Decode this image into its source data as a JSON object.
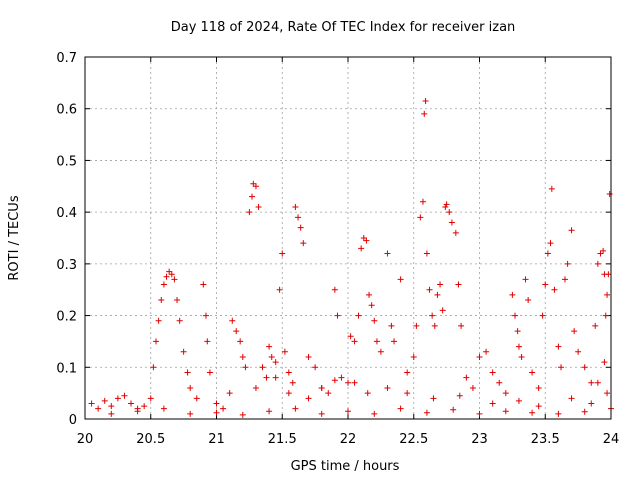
{
  "chart_data": {
    "type": "scatter",
    "title": "Day 118 of 2024, Rate Of TEC Index for receiver izan",
    "xlabel": "GPS time / hours",
    "ylabel": "ROTI / TECUs",
    "xlim": [
      20,
      24
    ],
    "ylim": [
      0,
      0.7
    ],
    "grid": true,
    "marker": "plus",
    "color": "#e00000",
    "x_ticks": [
      {
        "value": 20,
        "label": "20"
      },
      {
        "value": 20.5,
        "label": "20.5"
      },
      {
        "value": 21,
        "label": "21"
      },
      {
        "value": 21.5,
        "label": "21.5"
      },
      {
        "value": 22,
        "label": "22"
      },
      {
        "value": 22.5,
        "label": "22.5"
      },
      {
        "value": 23,
        "label": "23"
      },
      {
        "value": 23.5,
        "label": "23.5"
      },
      {
        "value": 24,
        "label": "24"
      }
    ],
    "y_ticks": [
      {
        "value": 0,
        "label": "0"
      },
      {
        "value": 0.1,
        "label": "0.1"
      },
      {
        "value": 0.2,
        "label": "0.2"
      },
      {
        "value": 0.3,
        "label": "0.3"
      },
      {
        "value": 0.4,
        "label": "0.4"
      },
      {
        "value": 0.5,
        "label": "0.5"
      },
      {
        "value": 0.6,
        "label": "0.6"
      },
      {
        "value": 0.7,
        "label": "0.7"
      }
    ],
    "points": [
      [
        20.05,
        0.03
      ],
      [
        20.1,
        0.02
      ],
      [
        20.15,
        0.035
      ],
      [
        20.2,
        0.025
      ],
      [
        20.25,
        0.04
      ],
      [
        20.3,
        0.045
      ],
      [
        20.35,
        0.03
      ],
      [
        20.4,
        0.02
      ],
      [
        20.45,
        0.025
      ],
      [
        20.5,
        0.04
      ],
      [
        20.52,
        0.1
      ],
      [
        20.54,
        0.15
      ],
      [
        20.56,
        0.19
      ],
      [
        20.58,
        0.23
      ],
      [
        20.6,
        0.26
      ],
      [
        20.62,
        0.275
      ],
      [
        20.64,
        0.285
      ],
      [
        20.66,
        0.28
      ],
      [
        20.68,
        0.27
      ],
      [
        20.7,
        0.23
      ],
      [
        20.72,
        0.19
      ],
      [
        20.75,
        0.13
      ],
      [
        20.78,
        0.09
      ],
      [
        20.8,
        0.06
      ],
      [
        20.85,
        0.04
      ],
      [
        20.9,
        0.26
      ],
      [
        20.92,
        0.2
      ],
      [
        20.93,
        0.15
      ],
      [
        20.95,
        0.09
      ],
      [
        21.0,
        0.03
      ],
      [
        21.05,
        0.02
      ],
      [
        21.1,
        0.05
      ],
      [
        21.12,
        0.19
      ],
      [
        21.15,
        0.17
      ],
      [
        21.18,
        0.15
      ],
      [
        21.2,
        0.12
      ],
      [
        21.22,
        0.1
      ],
      [
        21.25,
        0.4
      ],
      [
        21.27,
        0.43
      ],
      [
        21.28,
        0.455
      ],
      [
        21.3,
        0.45
      ],
      [
        21.32,
        0.41
      ],
      [
        21.35,
        0.1
      ],
      [
        21.38,
        0.08
      ],
      [
        21.4,
        0.14
      ],
      [
        21.42,
        0.12
      ],
      [
        21.45,
        0.11
      ],
      [
        21.48,
        0.25
      ],
      [
        21.5,
        0.32
      ],
      [
        21.52,
        0.13
      ],
      [
        21.55,
        0.09
      ],
      [
        21.58,
        0.07
      ],
      [
        21.6,
        0.41
      ],
      [
        21.62,
        0.39
      ],
      [
        21.64,
        0.37
      ],
      [
        21.66,
        0.34
      ],
      [
        21.7,
        0.12
      ],
      [
        21.75,
        0.1
      ],
      [
        21.8,
        0.06
      ],
      [
        21.85,
        0.05
      ],
      [
        21.9,
        0.25
      ],
      [
        21.92,
        0.2
      ],
      [
        21.95,
        0.08
      ],
      [
        22.0,
        0.07
      ],
      [
        22.02,
        0.16
      ],
      [
        22.05,
        0.15
      ],
      [
        22.08,
        0.2
      ],
      [
        22.1,
        0.33
      ],
      [
        22.12,
        0.35
      ],
      [
        22.14,
        0.345
      ],
      [
        22.16,
        0.24
      ],
      [
        22.18,
        0.22
      ],
      [
        22.2,
        0.19
      ],
      [
        22.22,
        0.15
      ],
      [
        22.25,
        0.13
      ],
      [
        22.3,
        0.32
      ],
      [
        22.33,
        0.18
      ],
      [
        22.35,
        0.15
      ],
      [
        22.4,
        0.27
      ],
      [
        22.45,
        0.09
      ],
      [
        22.5,
        0.12
      ],
      [
        22.52,
        0.18
      ],
      [
        22.55,
        0.39
      ],
      [
        22.57,
        0.42
      ],
      [
        22.58,
        0.59
      ],
      [
        22.59,
        0.615
      ],
      [
        22.6,
        0.32
      ],
      [
        22.62,
        0.25
      ],
      [
        22.64,
        0.2
      ],
      [
        22.66,
        0.18
      ],
      [
        22.68,
        0.24
      ],
      [
        22.7,
        0.26
      ],
      [
        22.72,
        0.21
      ],
      [
        22.74,
        0.41
      ],
      [
        22.75,
        0.415
      ],
      [
        22.77,
        0.4
      ],
      [
        22.79,
        0.38
      ],
      [
        22.82,
        0.36
      ],
      [
        22.84,
        0.26
      ],
      [
        22.86,
        0.18
      ],
      [
        22.9,
        0.08
      ],
      [
        22.95,
        0.06
      ],
      [
        23.0,
        0.12
      ],
      [
        23.05,
        0.13
      ],
      [
        23.1,
        0.09
      ],
      [
        23.15,
        0.07
      ],
      [
        23.2,
        0.05
      ],
      [
        23.25,
        0.24
      ],
      [
        23.27,
        0.2
      ],
      [
        23.29,
        0.17
      ],
      [
        23.3,
        0.14
      ],
      [
        23.32,
        0.12
      ],
      [
        23.35,
        0.27
      ],
      [
        23.37,
        0.23
      ],
      [
        23.4,
        0.09
      ],
      [
        23.45,
        0.06
      ],
      [
        23.48,
        0.2
      ],
      [
        23.5,
        0.26
      ],
      [
        23.52,
        0.32
      ],
      [
        23.54,
        0.34
      ],
      [
        23.55,
        0.445
      ],
      [
        23.57,
        0.25
      ],
      [
        23.6,
        0.14
      ],
      [
        23.62,
        0.1
      ],
      [
        23.65,
        0.27
      ],
      [
        23.67,
        0.3
      ],
      [
        23.7,
        0.365
      ],
      [
        23.72,
        0.17
      ],
      [
        23.75,
        0.13
      ],
      [
        23.8,
        0.1
      ],
      [
        23.85,
        0.07
      ],
      [
        23.88,
        0.18
      ],
      [
        23.9,
        0.3
      ],
      [
        23.92,
        0.32
      ],
      [
        23.94,
        0.325
      ],
      [
        23.95,
        0.28
      ],
      [
        23.96,
        0.2
      ],
      [
        23.97,
        0.24
      ],
      [
        23.98,
        0.28
      ],
      [
        23.99,
        0.435
      ],
      [
        23.95,
        0.11
      ],
      [
        23.9,
        0.07
      ],
      [
        23.97,
        0.05
      ],
      [
        20.2,
        0.01
      ],
      [
        20.4,
        0.015
      ],
      [
        20.6,
        0.02
      ],
      [
        20.8,
        0.01
      ],
      [
        21.0,
        0.012
      ],
      [
        21.2,
        0.008
      ],
      [
        21.4,
        0.015
      ],
      [
        21.6,
        0.02
      ],
      [
        21.8,
        0.01
      ],
      [
        22.0,
        0.015
      ],
      [
        22.2,
        0.01
      ],
      [
        22.4,
        0.02
      ],
      [
        22.6,
        0.012
      ],
      [
        22.8,
        0.018
      ],
      [
        23.0,
        0.01
      ],
      [
        23.2,
        0.015
      ],
      [
        23.4,
        0.012
      ],
      [
        23.6,
        0.01
      ],
      [
        23.8,
        0.014
      ],
      [
        24.0,
        0.02
      ],
      [
        21.3,
        0.06
      ],
      [
        21.45,
        0.08
      ],
      [
        21.55,
        0.05
      ],
      [
        21.7,
        0.04
      ],
      [
        21.8,
        0.06
      ],
      [
        21.9,
        0.075
      ],
      [
        22.05,
        0.07
      ],
      [
        22.15,
        0.05
      ],
      [
        22.3,
        0.06
      ],
      [
        22.45,
        0.05
      ],
      [
        22.65,
        0.04
      ],
      [
        22.85,
        0.045
      ],
      [
        23.1,
        0.03
      ],
      [
        23.3,
        0.035
      ],
      [
        23.45,
        0.025
      ],
      [
        23.7,
        0.04
      ],
      [
        23.85,
        0.03
      ]
    ]
  }
}
